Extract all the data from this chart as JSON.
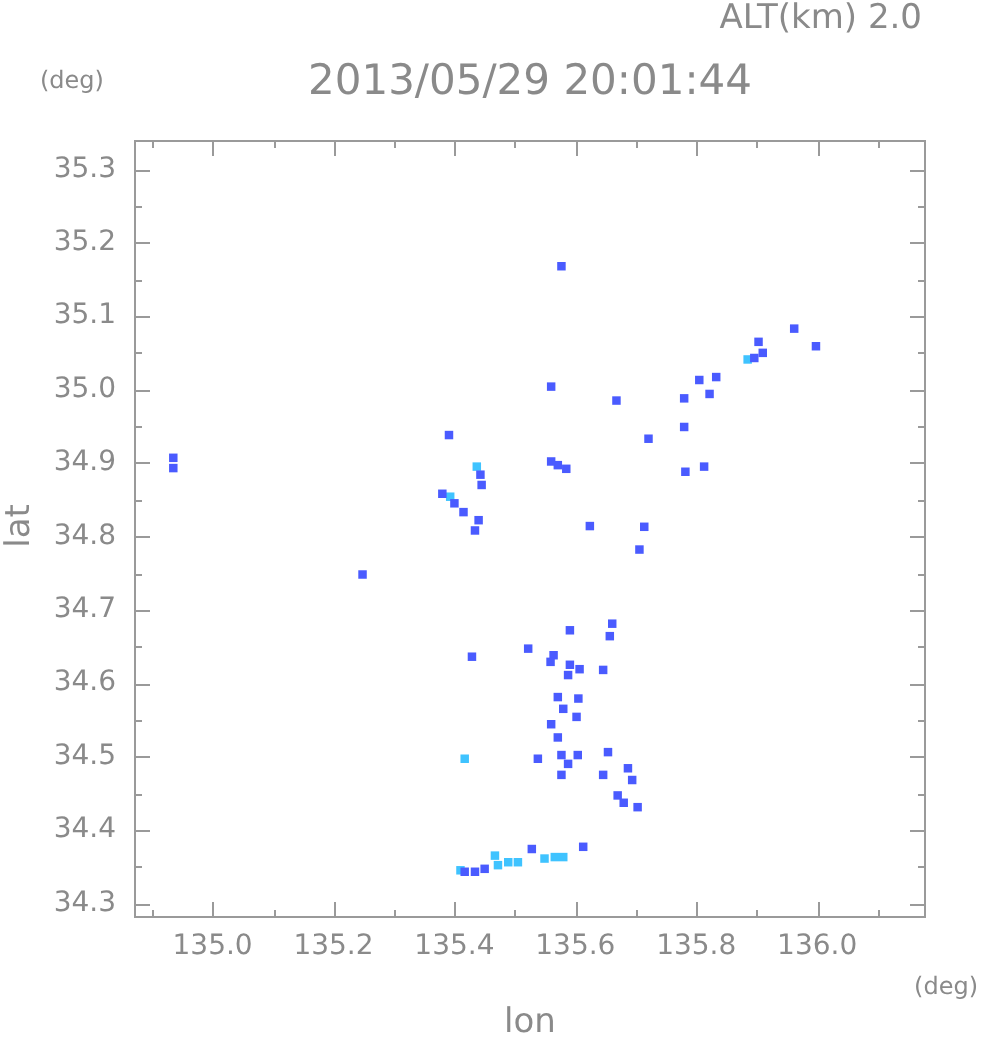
{
  "chart_data": {
    "type": "scatter",
    "title": "2013/05/29 20:01:44",
    "subtitle": "ALT(km) 2.0",
    "xlabel": "lon",
    "ylabel": "lat",
    "annotations": [
      "(deg)",
      "(deg)"
    ],
    "xlim": [
      134.87,
      136.18
    ],
    "ylim": [
      34.28,
      35.34
    ],
    "xticks": [
      {
        "value": 134.9,
        "label": null
      },
      {
        "value": 135,
        "label": "135.0"
      },
      {
        "value": 135.1,
        "label": null
      },
      135.2,
      {
        "value": 135.3,
        "label": null
      },
      135.4,
      {
        "value": 135.5,
        "label": null
      },
      135.6,
      {
        "value": 135.7,
        "label": null
      },
      135.8,
      {
        "value": 135.9,
        "label": null
      },
      {
        "value": 136,
        "label": "136.0"
      },
      {
        "value": 136.1,
        "label": null
      }
    ],
    "yticks": [
      34.3,
      {
        "value": 34.35,
        "label": null
      },
      34.4,
      {
        "value": 34.45,
        "label": null
      },
      34.5,
      {
        "value": 34.55,
        "label": null
      },
      34.6,
      {
        "value": 34.65,
        "label": null
      },
      34.7,
      {
        "value": 34.75,
        "label": null
      },
      34.8,
      {
        "value": 34.85,
        "label": null
      },
      34.9,
      {
        "value": 34.95,
        "label": null
      },
      {
        "value": 35,
        "label": "35.0"
      },
      {
        "value": 35.05,
        "label": null
      },
      35.1,
      {
        "value": 35.15,
        "label": null
      },
      35.2,
      {
        "value": 35.25,
        "label": null
      },
      35.3
    ],
    "marker": "square",
    "series": [
      {
        "color": "#4a5bff",
        "x": [
          134.935,
          134.935,
          135.577,
          135.56,
          135.668,
          135.805,
          135.78,
          135.391,
          135.443,
          135.445,
          135.571,
          135.56,
          135.585,
          135.38,
          135.4,
          135.415,
          135.44,
          135.434,
          135.78,
          135.721,
          135.624,
          135.714,
          135.706,
          135.782,
          135.962,
          135.998,
          135.903,
          135.896,
          135.91,
          135.822,
          135.833,
          135.813,
          135.248,
          135.591,
          135.661,
          135.657,
          135.522,
          135.429,
          135.564,
          135.559,
          135.591,
          135.607,
          135.588,
          135.646,
          135.571,
          135.605,
          135.58,
          135.602,
          135.56,
          135.571,
          135.538,
          135.577,
          135.588,
          135.577,
          135.604,
          135.654,
          135.687,
          135.694,
          135.646,
          135.67,
          135.68,
          135.703,
          135.528,
          135.613,
          135.434,
          135.417,
          135.45
        ],
        "values": [
          34.907,
          34.893,
          35.168,
          35.004,
          34.985,
          35.013,
          34.988,
          34.938,
          34.884,
          34.87,
          34.897,
          34.902,
          34.892,
          34.858,
          34.845,
          34.833,
          34.822,
          34.808,
          34.949,
          34.933,
          34.814,
          34.813,
          34.782,
          34.888,
          35.083,
          35.059,
          35.065,
          35.043,
          35.05,
          34.994,
          35.017,
          34.895,
          34.748,
          34.672,
          34.681,
          34.664,
          34.647,
          34.636,
          34.638,
          34.629,
          34.625,
          34.619,
          34.611,
          34.618,
          34.581,
          34.579,
          34.565,
          34.554,
          34.544,
          34.526,
          34.497,
          34.502,
          34.49,
          34.475,
          34.502,
          34.506,
          34.484,
          34.468,
          34.475,
          34.447,
          34.437,
          34.431,
          34.374,
          34.377,
          34.343,
          34.343,
          34.347
        ]
      },
      {
        "color": "#3fc3ff",
        "x": [
          135.437,
          135.393,
          135.885,
          135.417,
          135.41,
          135.467,
          135.472,
          135.489,
          135.505,
          135.549,
          135.566,
          135.58
        ],
        "values": [
          34.895,
          34.854,
          35.041,
          34.497,
          34.345,
          34.365,
          34.352,
          34.356,
          34.356,
          34.361,
          34.363,
          34.363
        ]
      }
    ]
  }
}
